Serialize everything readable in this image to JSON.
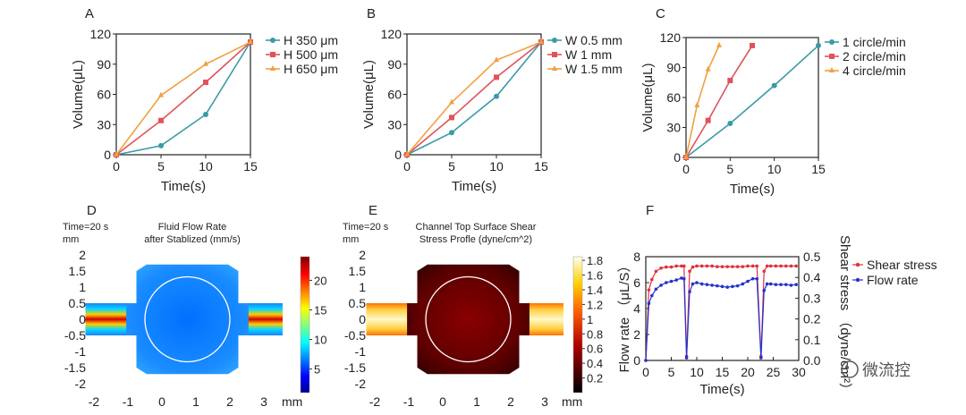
{
  "chart_data": [
    {
      "panel": "A",
      "type": "line",
      "xlabel": "Time(s)",
      "ylabel": "Volume(μL)",
      "xlim": [
        0,
        15
      ],
      "ylim": [
        0,
        120
      ],
      "xticks": [
        "0",
        "5",
        "10",
        "15"
      ],
      "yticks": [
        "0",
        "30",
        "60",
        "90",
        "120"
      ],
      "legend": "right",
      "series": [
        {
          "name": "H 350 μm",
          "color": "#3a9aa8",
          "marker": "circle",
          "x": [
            0,
            5,
            10,
            15
          ],
          "y": [
            0,
            9,
            40,
            112
          ]
        },
        {
          "name": "H 500 μm",
          "color": "#e0535a",
          "marker": "square",
          "x": [
            0,
            5,
            10,
            15
          ],
          "y": [
            0,
            34,
            72,
            112
          ]
        },
        {
          "name": "H 650 μm",
          "color": "#f0a040",
          "marker": "triangle",
          "x": [
            0,
            5,
            10,
            15
          ],
          "y": [
            0,
            59,
            90,
            112
          ]
        }
      ]
    },
    {
      "panel": "B",
      "type": "line",
      "xlabel": "Time(s)",
      "ylabel": "Volume(μL)",
      "xlim": [
        0,
        15
      ],
      "ylim": [
        0,
        120
      ],
      "xticks": [
        "0",
        "5",
        "10",
        "15"
      ],
      "yticks": [
        "0",
        "30",
        "60",
        "90",
        "120"
      ],
      "legend": "right",
      "series": [
        {
          "name": "W 0.5 mm",
          "color": "#3a9aa8",
          "marker": "circle",
          "x": [
            0,
            5,
            10,
            15
          ],
          "y": [
            0,
            22,
            58,
            112
          ]
        },
        {
          "name": "W 1 mm",
          "color": "#e0535a",
          "marker": "square",
          "x": [
            0,
            5,
            10,
            15
          ],
          "y": [
            0,
            37,
            77,
            112
          ]
        },
        {
          "name": "W 1.5 mm",
          "color": "#f0a040",
          "marker": "triangle",
          "x": [
            0,
            5,
            10,
            15
          ],
          "y": [
            0,
            52,
            94,
            112
          ]
        }
      ]
    },
    {
      "panel": "C",
      "type": "line",
      "xlabel": "Time(s)",
      "ylabel": "Volume(μL)",
      "xlim": [
        0,
        15
      ],
      "ylim": [
        0,
        120
      ],
      "xticks": [
        "0",
        "5",
        "10",
        "15"
      ],
      "yticks": [
        "0",
        "30",
        "60",
        "90",
        "120"
      ],
      "legend": "right",
      "series": [
        {
          "name": "1 circle/min",
          "color": "#3a9aa8",
          "marker": "circle",
          "x": [
            0,
            5,
            10,
            15
          ],
          "y": [
            0,
            34,
            72,
            112
          ]
        },
        {
          "name": "2 circle/min",
          "color": "#e0535a",
          "marker": "square",
          "x": [
            0,
            2.5,
            5,
            7.5
          ],
          "y": [
            0,
            37,
            77,
            112
          ]
        },
        {
          "name": "4 circle/min",
          "color": "#f0a040",
          "marker": "triangle",
          "x": [
            0,
            1.25,
            2.5,
            3.75
          ],
          "y": [
            0,
            52,
            88,
            112
          ]
        }
      ]
    },
    {
      "panel": "D",
      "type": "heatmap",
      "time_label": "Time=20 s",
      "unit_label": "mm",
      "title": "Fluid Flow Rate after Stablized (mm/s)",
      "xaxis_unit": "mm",
      "xticks": [
        "-2",
        "-1",
        "0",
        "1",
        "2",
        "3"
      ],
      "yticks": [
        "2",
        "1.5",
        "1",
        "0.5",
        "0",
        "-0.5",
        "-1",
        "-1.5",
        "-2"
      ],
      "colorbar_ticks": [
        "20",
        "15",
        "10",
        "5"
      ],
      "colorbar_range": [
        1,
        24
      ]
    },
    {
      "panel": "E",
      "type": "heatmap",
      "time_label": "Time=20 s",
      "unit_label": "mm",
      "title": "Channel Top Surface Shear Stress Profle (dyne/cm^2)",
      "xaxis_unit": "mm",
      "xticks": [
        "-2",
        "-1",
        "0",
        "1",
        "2",
        "3"
      ],
      "yticks": [
        "2",
        "1.5",
        "1",
        "0.5",
        "0",
        "-0.5",
        "-1",
        "-1.5",
        "-2"
      ],
      "colorbar_ticks": [
        "1.8",
        "1.6",
        "1.4",
        "1.2",
        "1",
        "0.8",
        "0.6",
        "0.4",
        "0.2"
      ],
      "colorbar_range": [
        0,
        1.85
      ]
    },
    {
      "panel": "F",
      "type": "line",
      "xlabel": "Time(s)",
      "ylabel_left": "Flow rate （μL/S）",
      "ylabel_right": "Shear stress （dyne/cm²）",
      "xlim": [
        0,
        30
      ],
      "ylim_left": [
        0,
        8
      ],
      "ylim_right": [
        0,
        0.5
      ],
      "xticks": [
        "0",
        "5",
        "10",
        "15",
        "20",
        "25",
        "30"
      ],
      "yticks_left": [
        "0",
        "2",
        "4",
        "6",
        "8"
      ],
      "yticks_right": [
        "0.0",
        "0.1",
        "0.2",
        "0.3",
        "0.4",
        "0.5"
      ],
      "legend": "right",
      "series": [
        {
          "name": "Shear stress",
          "color": "#e0303a",
          "marker": "circle",
          "axis": "right",
          "x": [
            0,
            0.6,
            1.2,
            2,
            3,
            4,
            5,
            6,
            7,
            7.5,
            8,
            8.6,
            9.2,
            10,
            11,
            12,
            13,
            14,
            15,
            16,
            17,
            18,
            19,
            20,
            21,
            21.8,
            22.6,
            23.2,
            23.8,
            24.5,
            25.5,
            26.5,
            27.5,
            28.5,
            29.5
          ],
          "y": [
            0,
            0.34,
            0.39,
            0.43,
            0.445,
            0.45,
            0.45,
            0.455,
            0.455,
            0.455,
            0.02,
            0.43,
            0.45,
            0.455,
            0.455,
            0.455,
            0.455,
            0.452,
            0.452,
            0.452,
            0.452,
            0.452,
            0.452,
            0.455,
            0.455,
            0.455,
            0.02,
            0.43,
            0.455,
            0.455,
            0.455,
            0.455,
            0.455,
            0.455,
            0.455
          ]
        },
        {
          "name": "Flow rate",
          "color": "#2233cc",
          "marker": "circle",
          "axis": "left",
          "x": [
            0,
            0.6,
            1.2,
            2,
            3,
            4,
            5,
            6,
            7,
            7.5,
            8,
            8.6,
            9.2,
            10,
            11,
            12,
            13,
            14,
            15,
            16,
            17,
            18,
            19,
            20,
            21,
            21.8,
            22.6,
            23.2,
            23.8,
            24.5,
            25.5,
            26.5,
            27.5,
            28.5,
            29.5
          ],
          "y": [
            0,
            4.4,
            5.0,
            5.5,
            5.8,
            6.0,
            6.1,
            6.2,
            6.35,
            6.3,
            0.2,
            5.3,
            5.9,
            6.0,
            5.9,
            5.85,
            5.8,
            5.75,
            5.7,
            5.65,
            5.7,
            5.75,
            5.9,
            6.1,
            6.3,
            6.3,
            0.2,
            5.4,
            5.9,
            5.9,
            5.85,
            5.85,
            5.85,
            5.8,
            5.85
          ]
        }
      ]
    }
  ],
  "watermark": "微流控"
}
